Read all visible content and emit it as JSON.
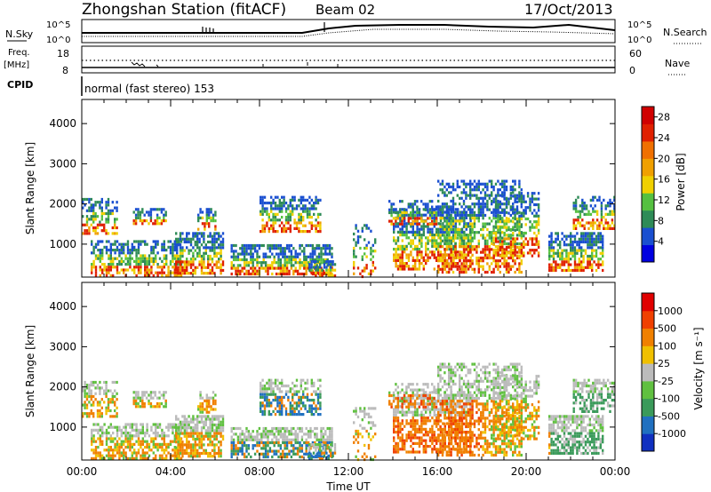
{
  "header": {
    "station": "Zhongshan Station (fitACF)",
    "beam": "Beam 02",
    "date": "17/Oct/2013"
  },
  "top_panels": {
    "nsky_label": "N.Sky",
    "nsearch_label": "N.Search",
    "nsky_ticks": [
      "10^5",
      "10^0"
    ],
    "nsearch_ticks": [
      "10^5",
      "10^0"
    ],
    "freq_label_1": "Freq.",
    "freq_label_2": "[MHz]",
    "freq_ticks": [
      "18",
      "8"
    ],
    "nave_label": "Nave",
    "nave_ticks": [
      "60",
      "0"
    ],
    "cpid_label": "CPID",
    "cpid_text": "normal (fast stereo) 153"
  },
  "chart_data": [
    {
      "type": "heatmap",
      "panel": "power",
      "ylabel": "Slant Range [km]",
      "y_ticks": [
        1000,
        2000,
        3000,
        4000
      ],
      "ylim": [
        180,
        4600
      ],
      "x_ticks": [
        "00:00",
        "04:00",
        "08:00",
        "12:00",
        "16:00",
        "20:00",
        "00:00"
      ],
      "xlim_hours": [
        0,
        24
      ],
      "colorbar": {
        "label": "Power [dB]",
        "ticks": [
          4,
          8,
          12,
          16,
          20,
          24,
          28
        ],
        "range": [
          0,
          30
        ],
        "colors": [
          "#0000e0",
          "#1a4fd0",
          "#2e8b57",
          "#55c040",
          "#f0d000",
          "#f0a000",
          "#f07000",
          "#e02000",
          "#d00000"
        ]
      }
    },
    {
      "type": "heatmap",
      "panel": "velocity",
      "ylabel": "Slant Range [km]",
      "xlabel": "Time UT",
      "y_ticks": [
        1000,
        2000,
        3000,
        4000
      ],
      "ylim": [
        180,
        4600
      ],
      "x_ticks": [
        "00:00",
        "04:00",
        "08:00",
        "12:00",
        "16:00",
        "20:00",
        "00:00"
      ],
      "xlim_hours": [
        0,
        24
      ],
      "colorbar": {
        "label": "Velocity [m s⁻¹]",
        "ticks": [
          "1000",
          "500",
          "100",
          "25",
          "-25",
          "-100",
          "-500",
          "-1000"
        ],
        "colors": [
          "#1030c0",
          "#2070c0",
          "#3a9a5a",
          "#60c040",
          "#bbbbbb",
          "#f0c000",
          "#f08000",
          "#f04000",
          "#e00000"
        ]
      }
    }
  ]
}
